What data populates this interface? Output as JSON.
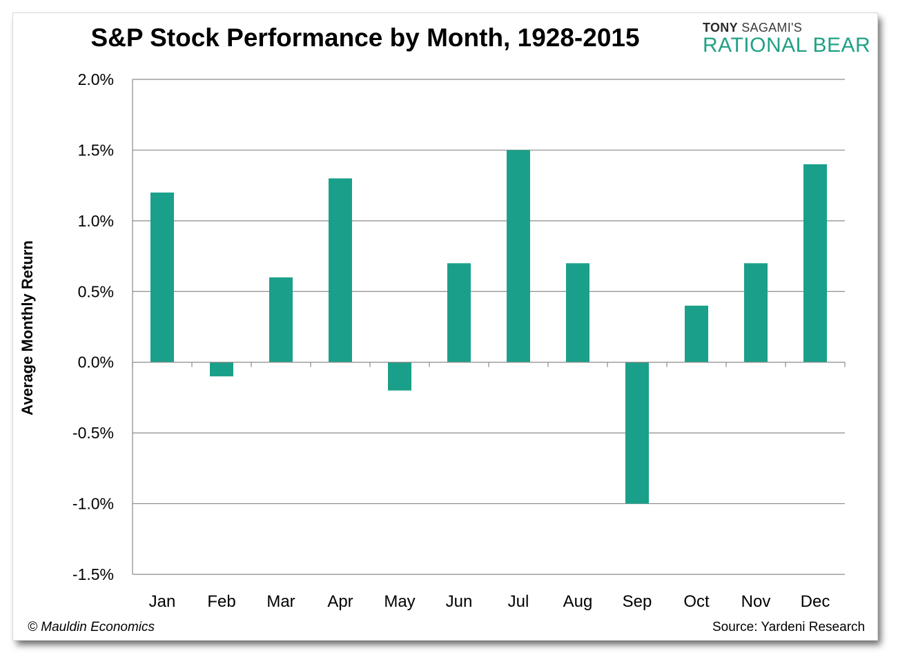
{
  "branding": {
    "name_bold": "TONY",
    "name_rest": "SAGAMI'S",
    "product": "RATIONAL BEAR",
    "accent_color": "#20a085"
  },
  "footer": {
    "copyright": "© Mauldin Economics",
    "source": "Source: Yardeni Research"
  },
  "chart_data": {
    "type": "bar",
    "title": "S&P Stock Performance by Month, 1928-2015",
    "xlabel": "",
    "ylabel": "Average Monthly Return",
    "categories": [
      "Jan",
      "Feb",
      "Mar",
      "Apr",
      "May",
      "Jun",
      "Jul",
      "Aug",
      "Sep",
      "Oct",
      "Nov",
      "Dec"
    ],
    "values": [
      1.2,
      -0.1,
      0.6,
      1.3,
      -0.2,
      0.7,
      1.5,
      0.7,
      -1.0,
      0.4,
      0.7,
      1.4
    ],
    "unit": "%",
    "ylim": [
      -1.5,
      2.0
    ],
    "yticks": [
      2.0,
      1.5,
      1.0,
      0.5,
      0.0,
      -0.5,
      -1.0,
      -1.5
    ],
    "ytick_labels": [
      "2.0%",
      "1.5%",
      "1.0%",
      "0.5%",
      "0.0%",
      "-0.5%",
      "-1.0%",
      "-1.5%"
    ],
    "grid": true,
    "bar_color": "#1aa08a",
    "legend": "none"
  }
}
